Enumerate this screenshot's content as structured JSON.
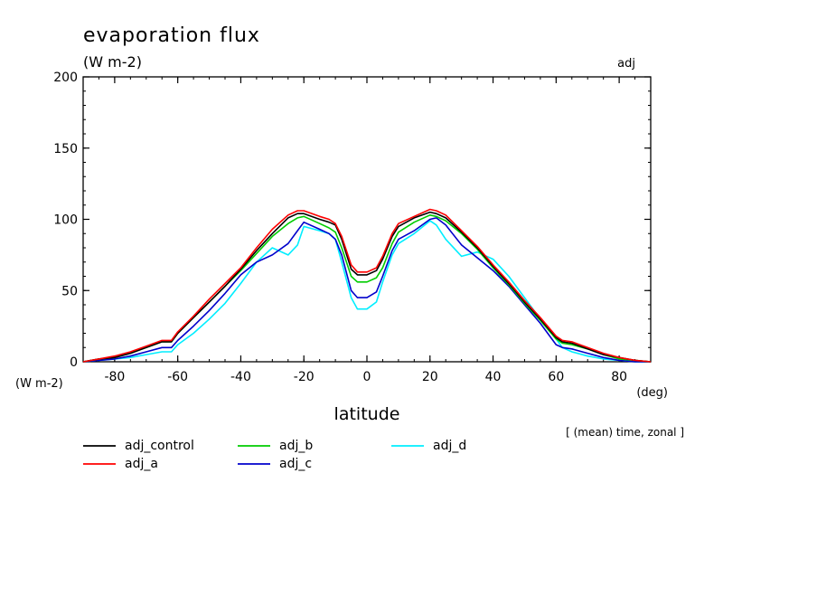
{
  "chart_data": {
    "type": "line",
    "title": "evaporation flux",
    "units": "(W m-2)",
    "tag": "adj",
    "ylabel_units": "(W m-2)",
    "xlabel": "latitude",
    "xunits": "(deg)",
    "note": "[ (mean) time, zonal ]",
    "xlim": [
      -90,
      90
    ],
    "ylim": [
      0,
      200
    ],
    "xticks": [
      -80,
      -60,
      -40,
      -20,
      0,
      20,
      40,
      60,
      80
    ],
    "xtick_labels": [
      "-80",
      "-60",
      "-40",
      "-20",
      "0",
      "20",
      "40",
      "60",
      "80"
    ],
    "yticks": [
      0,
      50,
      100,
      150,
      200
    ],
    "ytick_labels": [
      "0",
      "50",
      "100",
      "150",
      "200"
    ],
    "x": [
      -90,
      -85,
      -80,
      -75,
      -70,
      -65,
      -62,
      -60,
      -55,
      -50,
      -45,
      -40,
      -35,
      -30,
      -25,
      -22,
      -20,
      -15,
      -12,
      -10,
      -8,
      -5,
      -3,
      0,
      3,
      5,
      8,
      10,
      15,
      20,
      22,
      25,
      30,
      35,
      40,
      45,
      50,
      55,
      60,
      62,
      65,
      70,
      75,
      80,
      85,
      90
    ],
    "series": [
      {
        "name": "adj_control",
        "color": "#000000",
        "values": [
          0,
          2,
          3,
          6,
          10,
          14,
          14,
          20,
          31,
          42,
          53,
          65,
          78,
          90,
          101,
          104,
          104,
          100,
          98,
          96,
          86,
          65,
          61,
          61,
          64,
          72,
          88,
          95,
          101,
          105,
          104,
          101,
          91,
          80,
          67,
          55,
          42,
          30,
          17,
          14,
          13,
          9,
          5,
          3,
          1,
          0
        ]
      },
      {
        "name": "adj_a",
        "color": "#ff0000",
        "values": [
          0,
          2,
          4,
          7,
          11,
          15,
          15,
          21,
          32,
          44,
          55,
          66,
          80,
          93,
          103,
          106,
          106,
          102,
          100,
          97,
          88,
          68,
          63,
          63,
          66,
          74,
          90,
          97,
          102,
          107,
          106,
          103,
          92,
          81,
          68,
          56,
          43,
          31,
          18,
          15,
          14,
          10,
          6,
          3,
          1,
          0
        ]
      },
      {
        "name": "adj_b",
        "color": "#00cc00",
        "values": [
          0,
          2,
          3,
          6,
          10,
          14,
          14,
          20,
          31,
          42,
          53,
          64,
          76,
          88,
          97,
          101,
          102,
          97,
          94,
          91,
          80,
          60,
          56,
          56,
          59,
          66,
          83,
          91,
          98,
          103,
          102,
          99,
          90,
          79,
          66,
          54,
          41,
          29,
          16,
          13,
          12,
          9,
          5,
          2,
          1,
          0
        ]
      },
      {
        "name": "adj_c",
        "color": "#0000cc",
        "values": [
          0,
          1,
          2,
          4,
          7,
          10,
          10,
          15,
          25,
          36,
          48,
          61,
          70,
          75,
          83,
          92,
          98,
          93,
          90,
          86,
          75,
          50,
          45,
          45,
          49,
          60,
          78,
          86,
          92,
          100,
          101,
          96,
          82,
          73,
          64,
          53,
          40,
          27,
          12,
          10,
          9,
          6,
          3,
          1,
          0,
          0
        ]
      },
      {
        "name": "adj_d",
        "color": "#00eeff",
        "values": [
          0,
          1,
          2,
          3,
          5,
          7,
          7,
          12,
          20,
          30,
          41,
          55,
          70,
          80,
          75,
          82,
          95,
          92,
          90,
          86,
          70,
          45,
          37,
          37,
          42,
          56,
          75,
          83,
          90,
          99,
          96,
          86,
          74,
          77,
          72,
          60,
          45,
          30,
          16,
          10,
          7,
          4,
          2,
          1,
          0,
          0
        ]
      }
    ]
  }
}
